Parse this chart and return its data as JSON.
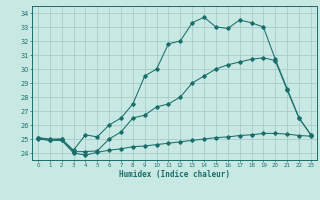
{
  "xlabel": "Humidex (Indice chaleur)",
  "background_color": "#c8e8e4",
  "grid_color": "#a8cccc",
  "line_color": "#1a6e6a",
  "xlim": [
    -0.5,
    23.5
  ],
  "ylim": [
    23.5,
    34.5
  ],
  "xticks": [
    0,
    1,
    2,
    3,
    4,
    5,
    6,
    7,
    8,
    9,
    10,
    11,
    12,
    13,
    14,
    15,
    16,
    17,
    18,
    19,
    20,
    21,
    22,
    23
  ],
  "yticks": [
    24,
    25,
    26,
    27,
    28,
    29,
    30,
    31,
    32,
    33,
    34
  ],
  "line1_x": [
    0,
    1,
    2,
    3,
    4,
    5,
    6,
    7,
    8,
    9,
    10,
    11,
    12,
    13,
    14,
    15,
    16,
    17,
    18,
    19,
    20,
    21,
    22,
    23
  ],
  "line1_y": [
    25.0,
    24.9,
    24.9,
    24.0,
    23.85,
    24.05,
    24.2,
    24.3,
    24.45,
    24.5,
    24.6,
    24.7,
    24.8,
    24.9,
    25.0,
    25.1,
    25.15,
    25.25,
    25.3,
    25.4,
    25.4,
    25.35,
    25.25,
    25.2
  ],
  "line2_x": [
    0,
    1,
    2,
    3,
    4,
    5,
    6,
    7,
    8,
    9,
    10,
    11,
    12,
    13,
    14,
    15,
    16,
    17,
    18,
    19,
    20,
    21,
    22,
    23
  ],
  "line2_y": [
    25.1,
    24.9,
    25.0,
    24.1,
    24.1,
    24.15,
    25.0,
    25.5,
    26.5,
    26.7,
    27.3,
    27.5,
    28.0,
    29.0,
    29.5,
    30.0,
    30.3,
    30.5,
    30.7,
    30.8,
    30.6,
    28.5,
    26.5,
    25.3
  ],
  "line3_x": [
    0,
    1,
    2,
    3,
    4,
    5,
    6,
    7,
    8,
    9,
    10,
    11,
    12,
    13,
    14,
    15,
    16,
    17,
    18,
    19,
    20,
    21,
    22,
    23
  ],
  "line3_y": [
    25.1,
    25.0,
    25.0,
    24.2,
    25.3,
    25.15,
    26.0,
    26.5,
    27.5,
    29.5,
    30.0,
    31.8,
    32.0,
    33.3,
    33.7,
    33.0,
    32.9,
    33.5,
    33.3,
    33.0,
    30.7,
    28.6,
    26.5,
    25.3
  ]
}
